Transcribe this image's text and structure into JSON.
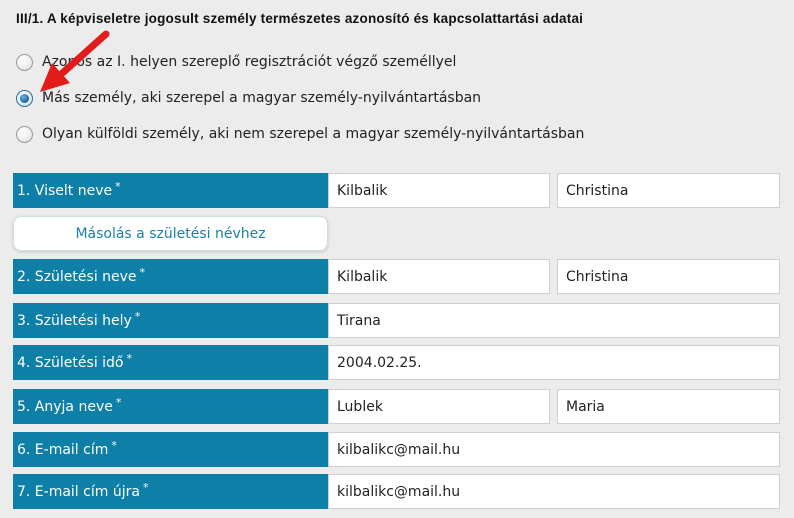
{
  "section_title": "III/1. A képviseletre jogosult személy természetes azonosító és kapcsolattartási adatai",
  "radio_options": [
    {
      "label": "Azonos az I. helyen szereplő regisztrációt végző személlyel",
      "checked": false
    },
    {
      "label": "Más személy, aki szerepel a magyar személy-nyilvántartásban",
      "checked": true
    },
    {
      "label": "Olyan külföldi személy, aki nem szerepel a magyar személy-nyilvántartásban",
      "checked": false
    }
  ],
  "required_marker": "*",
  "copy_button_label": "Másolás a születési névhez",
  "fields": {
    "viselt_nev": {
      "label": "1. Viselt neve",
      "last": "Kilbalik",
      "first": "Christina"
    },
    "szuletesi_nev": {
      "label": "2. Születési neve",
      "last": "Kilbalik",
      "first": "Christina"
    },
    "szuletesi_hely": {
      "label": "3. Születési hely",
      "value": "Tirana"
    },
    "szuletesi_ido": {
      "label": "4. Születési idő",
      "value": "2004.02.25."
    },
    "anyja_neve": {
      "label": "5. Anyja neve",
      "last": "Lublek",
      "first": "Maria"
    },
    "email": {
      "label": "6. E-mail cím",
      "value": "kilbalikc@mail.hu"
    },
    "email_again": {
      "label": "7. E-mail cím újra",
      "value": "kilbalikc@mail.hu"
    }
  },
  "colors": {
    "label_background": "#0e7fa6",
    "page_background": "#ececec",
    "arrow": "#e21b1b",
    "button_text": "#1c7fa5"
  },
  "icons": {
    "arrow": "red-pointer-arrow-icon"
  }
}
